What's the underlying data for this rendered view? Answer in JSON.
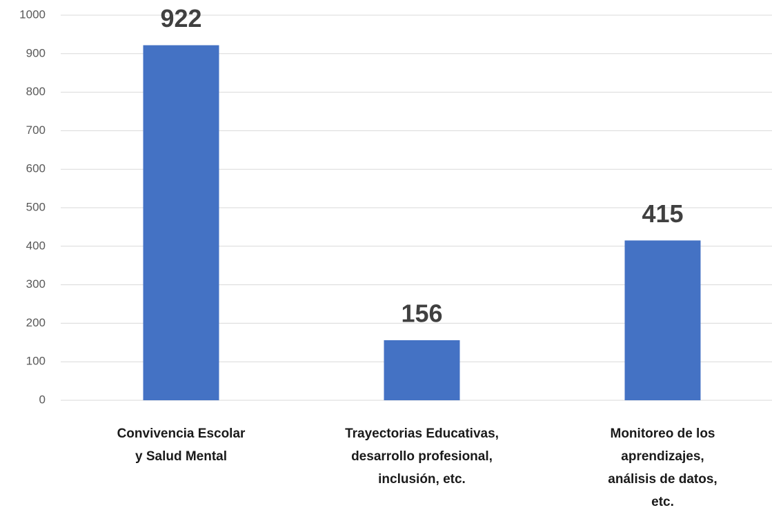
{
  "chart_data": {
    "type": "bar",
    "categories": [
      "Convivencia  Escolar\ny Salud Mental",
      "Trayectorias Educativas,\ndesarrollo profesional,\ninclusión, etc.",
      "Monitoreo de los\naprendizajes,\nanálisis de datos,\netc."
    ],
    "values": [
      922,
      156,
      415
    ],
    "color": "#4472c4",
    "ylim": [
      0,
      1000
    ],
    "yticks": [
      0,
      100,
      200,
      300,
      400,
      500,
      600,
      700,
      800,
      900,
      1000
    ],
    "grid": true
  }
}
